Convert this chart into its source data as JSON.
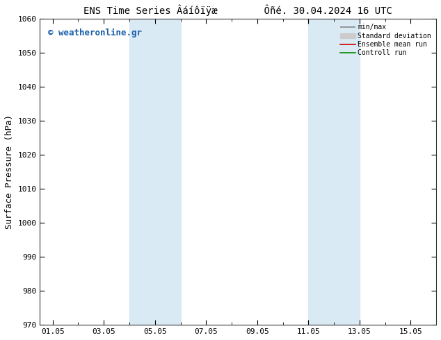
{
  "title": "ENS Time Series Âáíôïÿæ",
  "title2": "Ôñé. 30.04.2024 16 UTC",
  "ylabel": "Surface Pressure (hPa)",
  "ylim": [
    970,
    1060
  ],
  "yticks": [
    970,
    980,
    990,
    1000,
    1010,
    1020,
    1030,
    1040,
    1050,
    1060
  ],
  "xtick_labels": [
    "01.05",
    "03.05",
    "05.05",
    "07.05",
    "09.05",
    "11.05",
    "13.05",
    "15.05"
  ],
  "xtick_positions": [
    1,
    3,
    5,
    7,
    9,
    11,
    13,
    15
  ],
  "xlim": [
    0.5,
    16.0
  ],
  "shaded_bands": [
    {
      "x_start": 4.0,
      "x_end": 6.0
    },
    {
      "x_start": 11.0,
      "x_end": 13.0
    }
  ],
  "shade_color": "#daeaf5",
  "watermark": "© weatheronline.gr",
  "watermark_color": "#1a5faa",
  "legend_labels": [
    "min/max",
    "Standard deviation",
    "Ensemble mean run",
    "Controll run"
  ],
  "legend_colors": [
    "#888888",
    "#cccccc",
    "#cc0000",
    "#008800"
  ],
  "bg_color": "#ffffff",
  "title_fontsize": 10,
  "tick_fontsize": 8,
  "ylabel_fontsize": 9,
  "watermark_fontsize": 9
}
